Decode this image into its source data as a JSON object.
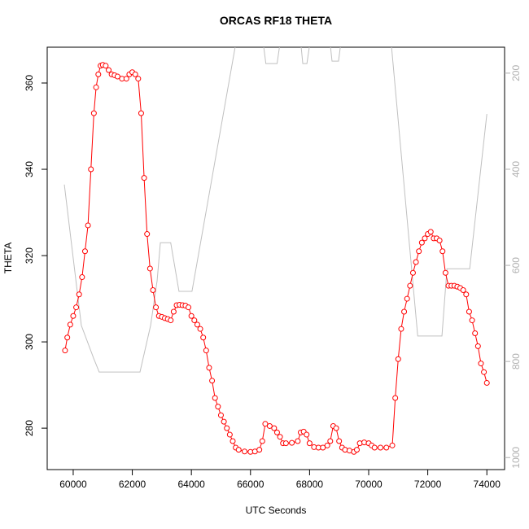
{
  "chart_data": {
    "type": "line",
    "title": "ORCAS RF18 THETA",
    "x_label": "UTC Seconds",
    "y_label": "THETA",
    "xlim": [
      59120,
      74600
    ],
    "ylim": [
      270.4,
      368.3
    ],
    "y2lim": [
      146,
      1025
    ],
    "y2_reversed": true,
    "xticks": [
      60000,
      62000,
      64000,
      66000,
      68000,
      70000,
      72000,
      74000
    ],
    "yticks": [
      280,
      300,
      320,
      340,
      360
    ],
    "y2ticks": [
      200,
      400,
      600,
      800,
      1000
    ],
    "series": [
      {
        "color": "#ff0000",
        "markers": true,
        "x": [
          59724,
          59800,
          59900,
          60000,
          60100,
          60200,
          60300,
          60400,
          60500,
          60600,
          60700,
          60775,
          60850,
          60925,
          61000,
          61100,
          61200,
          61300,
          61400,
          61500,
          61650,
          61800,
          61900,
          62000,
          62100,
          62200,
          62300,
          62400,
          62500,
          62600,
          62700,
          62800,
          62900,
          63000,
          63100,
          63200,
          63300,
          63400,
          63500,
          63600,
          63700,
          63800,
          63900,
          64000,
          64100,
          64200,
          64300,
          64400,
          64500,
          64600,
          64700,
          64800,
          64900,
          65000,
          65100,
          65200,
          65300,
          65400,
          65500,
          65600,
          65800,
          66000,
          66150,
          66300,
          66400,
          66500,
          66650,
          66800,
          66900,
          67000,
          67100,
          67200,
          67400,
          67600,
          67700,
          67800,
          67900,
          68000,
          68150,
          68300,
          68450,
          68600,
          68700,
          68800,
          68900,
          69000,
          69100,
          69200,
          69350,
          69500,
          69600,
          69700,
          69850,
          70000,
          70100,
          70200,
          70400,
          70600,
          70800,
          70900,
          71000,
          71100,
          71200,
          71300,
          71400,
          71500,
          71600,
          71700,
          71800,
          71900,
          72000,
          72100,
          72200,
          72300,
          72400,
          72500,
          72600,
          72700,
          72800,
          72900,
          73000,
          73100,
          73200,
          73300,
          73400,
          73500,
          73600,
          73700,
          73800,
          73900,
          74000
        ],
        "values": [
          298,
          301,
          304,
          306,
          308,
          311,
          315,
          321,
          327,
          340,
          353,
          359,
          362,
          364,
          364.2,
          364,
          363,
          362,
          361.8,
          361.5,
          361,
          361,
          362,
          362.5,
          362,
          361,
          353,
          338,
          325,
          317,
          312,
          308,
          306,
          305.8,
          305.5,
          305.3,
          305,
          307,
          308.5,
          308.6,
          308.5,
          308.4,
          308,
          306,
          305,
          304,
          303,
          301,
          298,
          294,
          291,
          287,
          285,
          283,
          281.5,
          280,
          278.5,
          277,
          275.5,
          275,
          274.6,
          274.5,
          274.6,
          275,
          277,
          281,
          280.5,
          280,
          279,
          278,
          276.5,
          276.5,
          276.6,
          277,
          279,
          279.2,
          278.5,
          276.5,
          275.6,
          275.5,
          275.5,
          276,
          277,
          280.5,
          280,
          277,
          275.5,
          275,
          274.8,
          274.5,
          275,
          276.5,
          276.7,
          276.5,
          276,
          275.5,
          275.5,
          275.5,
          276,
          287,
          296,
          303,
          307,
          310,
          313,
          316,
          318.5,
          321,
          323,
          324,
          325,
          325.5,
          324,
          324,
          323.5,
          321,
          316,
          313,
          313,
          313,
          312.8,
          312.5,
          312,
          311,
          307,
          305,
          302,
          299,
          295,
          293,
          290.5
        ]
      },
      {
        "color": "#c0c0c0",
        "axis": "y2",
        "x": [
          59700,
          60275,
          60690,
          60880,
          62260,
          62620,
          62840,
          62950,
          63300,
          63580,
          64020,
          65480,
          66000,
          66450,
          66520,
          66900,
          66980,
          67400,
          67716,
          67770,
          67910,
          67990,
          68400,
          68710,
          68760,
          68980,
          69040,
          69900,
          70775,
          71660,
          72480,
          72650,
          73420,
          74000
        ],
        "values": [
          432,
          725,
          793,
          822,
          822,
          725,
          632,
          553,
          553,
          654,
          654,
          146,
          null,
          146,
          180,
          180,
          146,
          null,
          146,
          180,
          180,
          146,
          null,
          146,
          175,
          175,
          146,
          null,
          146,
          747,
          747,
          607,
          607,
          285
        ]
      }
    ]
  }
}
